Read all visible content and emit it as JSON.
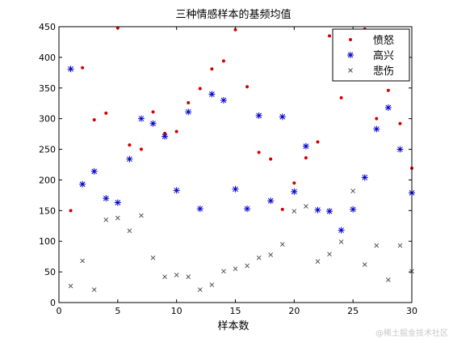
{
  "chart_data": {
    "type": "scatter",
    "title": "三种情感样本的基频均值",
    "xlabel": "样本数",
    "ylabel": "",
    "xlim": [
      0,
      30
    ],
    "ylim": [
      0,
      450
    ],
    "xticks": [
      0,
      5,
      10,
      15,
      20,
      25,
      30
    ],
    "yticks": [
      0,
      50,
      100,
      150,
      200,
      250,
      300,
      350,
      400,
      450
    ],
    "grid": false,
    "legend_position": "top-right",
    "series": [
      {
        "name": "愤怒",
        "marker": "dot",
        "color": "#d40000",
        "x": [
          1,
          2,
          3,
          4,
          5,
          6,
          7,
          8,
          9,
          10,
          11,
          12,
          13,
          14,
          15,
          16,
          17,
          18,
          19,
          20,
          21,
          22,
          23,
          24,
          25,
          26,
          27,
          28,
          29,
          30
        ],
        "y": [
          150,
          383,
          298,
          309,
          448,
          257,
          250,
          311,
          276,
          279,
          326,
          349,
          381,
          394,
          445,
          352,
          245,
          234,
          152,
          195,
          236,
          262,
          435,
          334,
          429,
          446,
          300,
          346,
          292,
          219
        ]
      },
      {
        "name": "高兴",
        "marker": "star",
        "color": "#0000cc",
        "x": [
          1,
          2,
          3,
          4,
          5,
          6,
          7,
          8,
          9,
          10,
          11,
          12,
          13,
          14,
          15,
          16,
          17,
          18,
          19,
          20,
          21,
          22,
          23,
          24,
          25,
          26,
          27,
          28,
          29,
          30
        ],
        "y": [
          381,
          193,
          214,
          170,
          163,
          234,
          300,
          292,
          271,
          183,
          311,
          153,
          340,
          330,
          185,
          153,
          305,
          166,
          303,
          181,
          255,
          151,
          149,
          118,
          152,
          204,
          283,
          318,
          250,
          179
        ]
      },
      {
        "name": "悲伤",
        "marker": "cross",
        "color": "#444444",
        "x": [
          1,
          2,
          3,
          4,
          5,
          6,
          7,
          8,
          9,
          10,
          11,
          12,
          13,
          14,
          15,
          16,
          17,
          18,
          19,
          20,
          21,
          22,
          23,
          24,
          25,
          26,
          27,
          28,
          29,
          30
        ],
        "y": [
          27,
          68,
          21,
          135,
          138,
          117,
          142,
          73,
          42,
          45,
          42,
          21,
          29,
          51,
          55,
          60,
          73,
          78,
          95,
          149,
          157,
          67,
          79,
          99,
          182,
          62,
          93,
          37,
          93,
          51
        ]
      }
    ]
  },
  "watermark": "@稀土掘金技术社区"
}
